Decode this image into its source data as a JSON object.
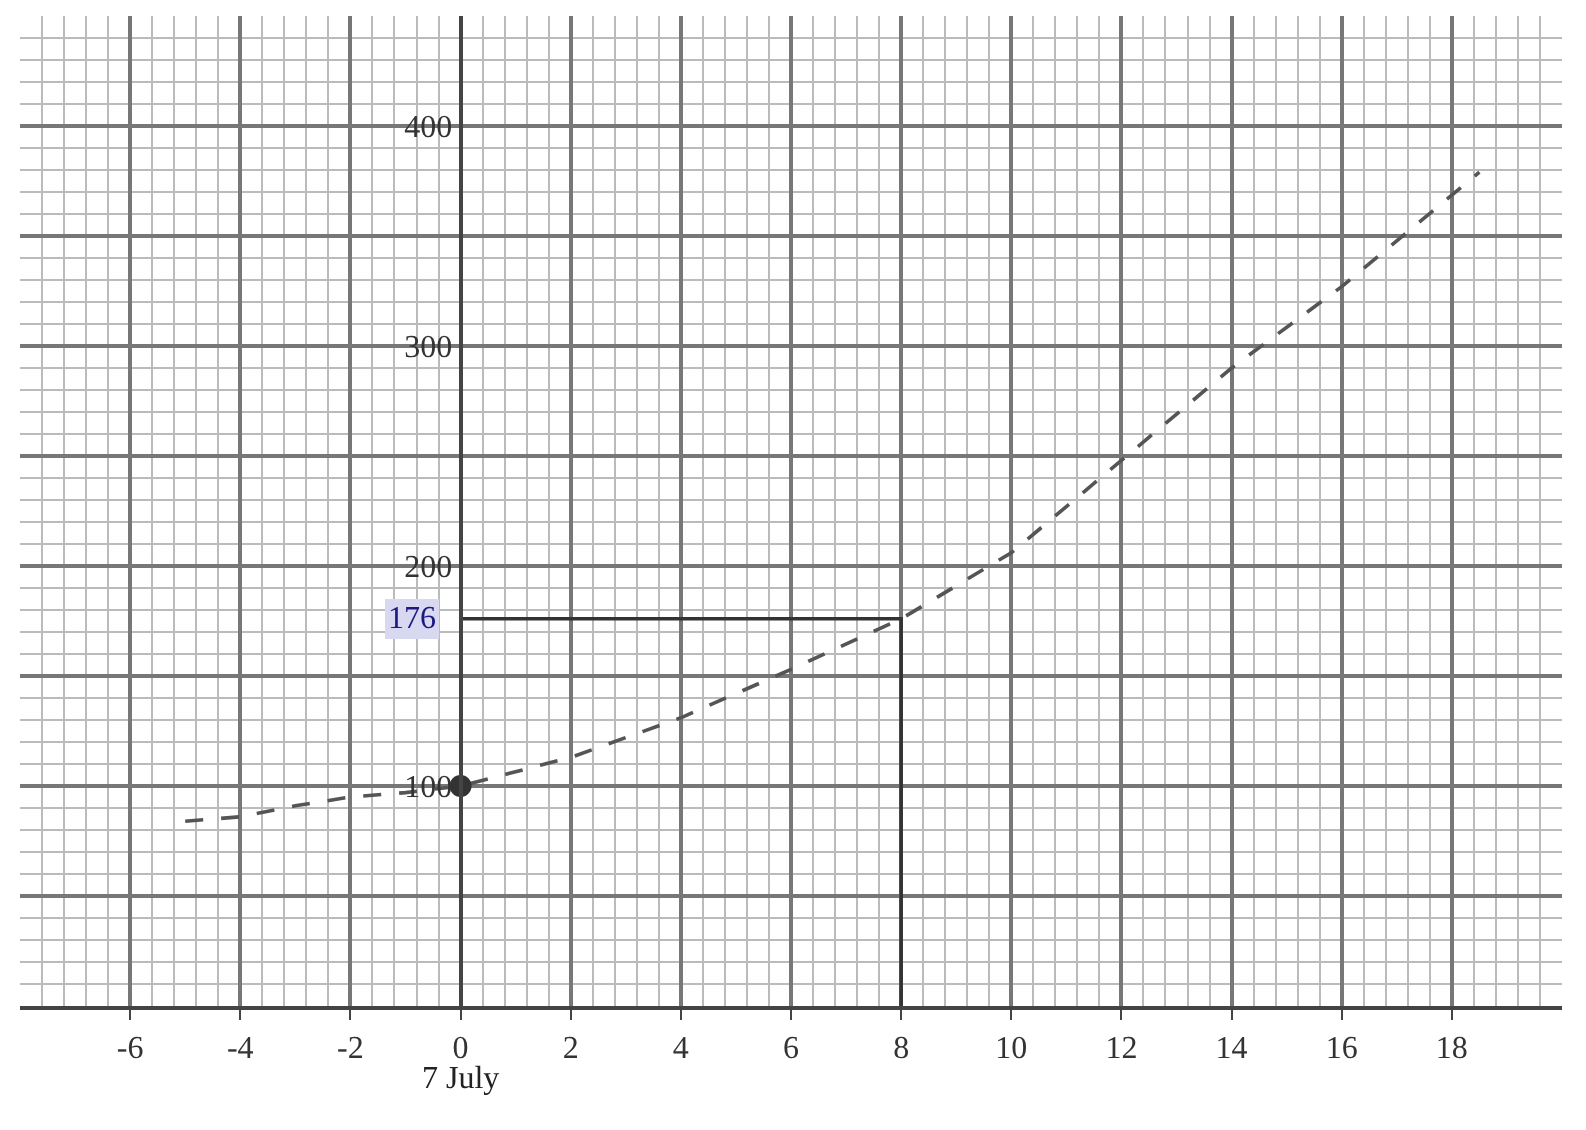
{
  "chart_data": {
    "type": "line",
    "xlim": [
      -8,
      20
    ],
    "ylim": [
      0,
      450
    ],
    "xticks": [
      -6,
      -4,
      -2,
      0,
      2,
      4,
      6,
      8,
      10,
      12,
      14,
      16,
      18
    ],
    "yticks": [
      {
        "value": 50,
        "label": null
      },
      100,
      {
        "value": 150,
        "label": null
      },
      200,
      {
        "value": 250,
        "label": null
      },
      300,
      {
        "value": 350,
        "label": null
      },
      400
    ],
    "grid": true,
    "line_style": "dashed",
    "series": [
      {
        "color": "#555555",
        "x": [
          -5,
          -4,
          -3,
          -2,
          -1,
          0,
          2,
          4,
          6,
          8,
          10,
          12,
          14,
          16,
          18.5
        ],
        "values": [
          84,
          86,
          91,
          95,
          97,
          100,
          113,
          131,
          153,
          176,
          206,
          248,
          290,
          327,
          379
        ]
      },
      {
        "type": "line",
        "line_style": "solid",
        "color": "#333333",
        "x": [
          0,
          8,
          8
        ],
        "values": [
          176,
          176,
          0
        ]
      },
      {
        "type": "scatter",
        "marker": "circle",
        "color": "#333333",
        "x": [
          0
        ],
        "values": [
          100
        ]
      }
    ],
    "annotations": [
      {
        "text": "176",
        "x": 0,
        "y": 176
      },
      "7 July"
    ]
  }
}
